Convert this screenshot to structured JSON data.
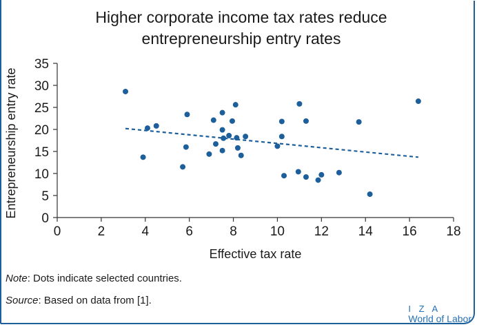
{
  "title": "Higher corporate income tax rates reduce entrepreneurship entry rates",
  "note": {
    "label": "Note",
    "text": ": Dots indicate selected countries."
  },
  "source": {
    "label": "Source",
    "text": ": Based on data from [1]."
  },
  "logo": {
    "line1": "I Z A",
    "line2": "World of Labor"
  },
  "colors": {
    "dots": "#1d5f9a",
    "trend": "#1d5f9a",
    "frame": "#1d5f9a",
    "logo": "#2470b5"
  },
  "chart_data": {
    "type": "scatter",
    "title": "Higher corporate income tax rates reduce entrepreneurship entry rates",
    "xlabel": "Effective tax rate",
    "ylabel": "Entrepreneurship entry rate",
    "xlim": [
      0,
      18
    ],
    "ylim": [
      0,
      35
    ],
    "xticks": [
      0,
      2,
      4,
      6,
      8,
      10,
      12,
      14,
      16,
      18
    ],
    "yticks": [
      0,
      5,
      10,
      15,
      20,
      25,
      30,
      35
    ],
    "grid": false,
    "points": [
      {
        "x": 3.1,
        "y": 28.6
      },
      {
        "x": 3.9,
        "y": 13.7
      },
      {
        "x": 4.1,
        "y": 20.3
      },
      {
        "x": 4.5,
        "y": 20.8
      },
      {
        "x": 5.7,
        "y": 11.5
      },
      {
        "x": 5.85,
        "y": 16.0
      },
      {
        "x": 5.9,
        "y": 23.4
      },
      {
        "x": 6.9,
        "y": 14.4
      },
      {
        "x": 7.1,
        "y": 22.1
      },
      {
        "x": 7.2,
        "y": 16.7
      },
      {
        "x": 7.5,
        "y": 23.8
      },
      {
        "x": 7.5,
        "y": 19.9
      },
      {
        "x": 7.5,
        "y": 15.2
      },
      {
        "x": 7.55,
        "y": 18.0
      },
      {
        "x": 7.8,
        "y": 18.6
      },
      {
        "x": 7.95,
        "y": 21.9
      },
      {
        "x": 8.1,
        "y": 25.6
      },
      {
        "x": 8.15,
        "y": 18.1
      },
      {
        "x": 8.2,
        "y": 15.8
      },
      {
        "x": 8.35,
        "y": 14.1
      },
      {
        "x": 8.55,
        "y": 18.4
      },
      {
        "x": 10.0,
        "y": 16.2
      },
      {
        "x": 10.2,
        "y": 21.8
      },
      {
        "x": 10.2,
        "y": 18.4
      },
      {
        "x": 10.3,
        "y": 9.5
      },
      {
        "x": 11.0,
        "y": 25.8
      },
      {
        "x": 10.95,
        "y": 10.4
      },
      {
        "x": 11.3,
        "y": 21.9
      },
      {
        "x": 11.3,
        "y": 9.2
      },
      {
        "x": 11.85,
        "y": 8.5
      },
      {
        "x": 12.0,
        "y": 9.7
      },
      {
        "x": 12.8,
        "y": 10.2
      },
      {
        "x": 13.7,
        "y": 21.7
      },
      {
        "x": 14.2,
        "y": 5.3
      },
      {
        "x": 16.4,
        "y": 26.4
      }
    ],
    "trendline": {
      "x": [
        3.1,
        16.4
      ],
      "y": [
        20.2,
        13.7
      ],
      "style": "dashed"
    }
  }
}
